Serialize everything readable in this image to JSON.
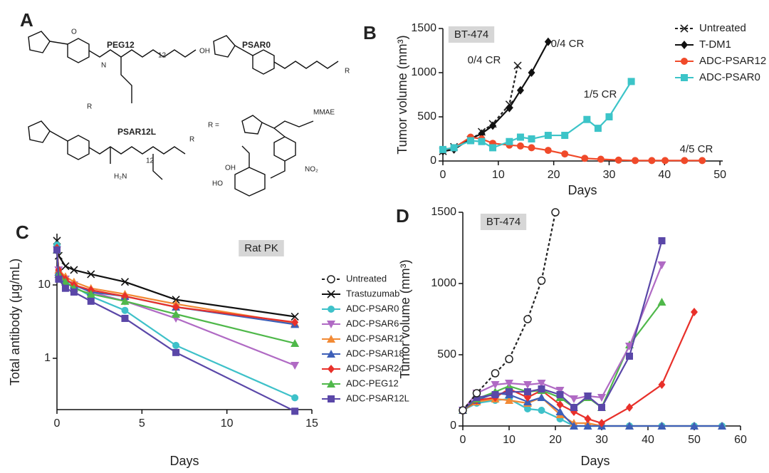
{
  "panel_labels": [
    "A",
    "B",
    "C",
    "D"
  ],
  "structures": {
    "names": [
      "PEG12",
      "PSAR0",
      "PSAR12L"
    ],
    "r_label": "R =",
    "atoms": [
      "O",
      "N",
      "OH",
      "R",
      "MMAE",
      "NO₂",
      "OH",
      "HO",
      "H₂N",
      "12",
      "12",
      "R",
      "R"
    ]
  },
  "chart_data": [
    {
      "type": "line",
      "xlabel": "Days",
      "ylabel": "Tumor volume (mm³)",
      "xlim": [
        0,
        50.5
      ],
      "ylim": [
        0,
        1500
      ],
      "xticks": [
        0,
        10,
        20,
        30,
        40,
        50
      ],
      "yticks": [
        0,
        500,
        1000,
        1500
      ],
      "legend": "upper right",
      "annotations": [
        {
          "text": "BT-474",
          "boxed": true
        },
        {
          "text": "0/4 CR",
          "color": "#222222"
        },
        {
          "text": "0/4 CR",
          "color": "#222222"
        },
        {
          "text": "1/5 CR",
          "color": "#3cc4c8"
        },
        {
          "text": "4/5 CR",
          "color": "#f04a2a"
        }
      ],
      "series": [
        {
          "name": "Untreated",
          "color": "#222222",
          "marker": "x",
          "dash": true,
          "x": [
            0,
            2,
            5,
            7,
            9,
            12,
            13.5
          ],
          "values": [
            110,
            160,
            240,
            330,
            420,
            640,
            1080
          ]
        },
        {
          "name": "T-DM1",
          "color": "#111111",
          "marker": "diamond",
          "dash": false,
          "x": [
            0,
            2,
            5,
            7,
            9,
            12,
            14,
            16,
            19
          ],
          "values": [
            110,
            130,
            250,
            310,
            400,
            600,
            800,
            1000,
            1350
          ]
        },
        {
          "name": "ADC-PSAR12",
          "color": "#f04a2a",
          "marker": "circle",
          "dash": false,
          "x": [
            0,
            2,
            5,
            7,
            9,
            12,
            14,
            16,
            19,
            22,
            25.6,
            28.5,
            31.7,
            34.7,
            37.7,
            40.1,
            43.6,
            46.8
          ],
          "values": [
            130,
            150,
            270,
            250,
            200,
            180,
            170,
            150,
            120,
            80,
            30,
            20,
            10,
            5,
            5,
            5,
            5,
            5
          ]
        },
        {
          "name": "ADC-PSAR0",
          "color": "#3cc4c8",
          "marker": "square",
          "dash": false,
          "x": [
            0,
            2,
            5,
            7,
            9,
            12,
            14,
            16,
            19,
            22,
            26,
            28,
            30,
            34
          ],
          "values": [
            130,
            150,
            230,
            220,
            150,
            220,
            270,
            250,
            290,
            290,
            470,
            370,
            500,
            900
          ]
        }
      ]
    },
    {
      "type": "line",
      "xlabel": "Days",
      "ylabel": "Total antibody (μg/mL)",
      "xlim": [
        0,
        15
      ],
      "ylim": [
        0.2,
        50
      ],
      "log_y": true,
      "xticks": [
        0,
        5,
        10,
        15
      ],
      "yticks": [
        1,
        10
      ],
      "legend": "right",
      "annotations": [
        {
          "text": "Rat PK",
          "boxed": true
        }
      ],
      "x": [
        0,
        0.1,
        0.5,
        1,
        2,
        4,
        7,
        14
      ],
      "series": [
        {
          "name": "Untreated",
          "color": "#222222",
          "marker": "open-circle",
          "dash": true,
          "values": [
            null,
            null,
            null,
            null,
            null,
            null,
            null,
            null
          ]
        },
        {
          "name": "Trastuzumab",
          "color": "#111111",
          "marker": "x",
          "dash": false,
          "values": [
            40,
            25,
            18,
            16,
            14,
            11,
            6.3,
            3.7
          ]
        },
        {
          "name": "ADC-PSAR0",
          "color": "#3ec1c9",
          "marker": "circle",
          "dash": false,
          "values": [
            35,
            15,
            11,
            9.5,
            7,
            4.5,
            1.5,
            0.29
          ]
        },
        {
          "name": "ADC-PSAR6",
          "color": "#b06ac4",
          "marker": "triangle-down",
          "dash": false,
          "values": [
            30,
            16,
            12,
            10,
            8,
            6,
            3.5,
            0.8
          ]
        },
        {
          "name": "ADC-PSAR12",
          "color": "#f28a35",
          "marker": "triangle",
          "dash": false,
          "values": [
            30,
            16,
            13,
            11,
            9,
            7.5,
            5.5,
            3.0
          ]
        },
        {
          "name": "ADC-PSAR18",
          "color": "#3d5fb8",
          "marker": "triangle",
          "dash": false,
          "values": [
            30,
            15,
            12,
            10,
            8,
            7,
            5.0,
            2.9
          ]
        },
        {
          "name": "ADC-PSAR24",
          "color": "#e8302a",
          "marker": "diamond",
          "dash": false,
          "values": [
            32,
            16,
            12,
            10,
            8.5,
            7,
            5,
            3.1
          ]
        },
        {
          "name": "ADC-PEG12",
          "color": "#4fb84a",
          "marker": "triangle",
          "dash": false,
          "values": [
            30,
            14,
            11,
            9,
            7.5,
            6,
            4,
            1.6
          ]
        },
        {
          "name": "ADC-PSAR12L",
          "color": "#5a47a8",
          "marker": "square",
          "dash": false,
          "values": [
            30,
            12,
            9,
            8,
            6,
            3.5,
            1.2,
            0.19
          ]
        }
      ]
    },
    {
      "type": "line",
      "xlabel": "Days",
      "ylabel": "Tumor volume (mm³)",
      "xlim": [
        0,
        60
      ],
      "ylim": [
        0,
        1500
      ],
      "xticks": [
        0,
        10,
        20,
        30,
        40,
        50,
        60
      ],
      "yticks": [
        0,
        500,
        1000,
        1500
      ],
      "annotations": [
        {
          "text": "BT-474",
          "boxed": true
        }
      ],
      "x": [
        0,
        3,
        7,
        10,
        14,
        17,
        21,
        24,
        27,
        30,
        36,
        43,
        50,
        56
      ],
      "series": [
        {
          "color": "#3ec1c9",
          "marker": "circle",
          "dash": false,
          "values": [
            110,
            160,
            180,
            190,
            120,
            110,
            50,
            0,
            0,
            0,
            0,
            0,
            0,
            0
          ]
        },
        {
          "color": "#f28a35",
          "marker": "triangle",
          "dash": false,
          "values": [
            110,
            170,
            190,
            180,
            160,
            200,
            80,
            20,
            20,
            0,
            0,
            0,
            0,
            0
          ]
        },
        {
          "color": "#3d5fb8",
          "marker": "triangle",
          "dash": false,
          "values": [
            110,
            180,
            230,
            220,
            170,
            200,
            100,
            0,
            0,
            0,
            0,
            0,
            0,
            0
          ]
        },
        {
          "color": "#e8302a",
          "marker": "diamond",
          "dash": false,
          "values": [
            110,
            180,
            200,
            260,
            200,
            250,
            150,
            100,
            50,
            20,
            130,
            290,
            800,
            null
          ]
        },
        {
          "color": "#4fb84a",
          "marker": "triangle",
          "dash": false,
          "values": [
            110,
            190,
            240,
            280,
            240,
            250,
            200,
            130,
            200,
            130,
            570,
            870,
            null,
            null
          ]
        },
        {
          "color": "#b06ac4",
          "marker": "triangle-down",
          "dash": false,
          "values": [
            110,
            230,
            290,
            300,
            290,
            300,
            250,
            190,
            210,
            200,
            560,
            1130,
            null,
            null
          ]
        },
        {
          "color": "#5a47a8",
          "marker": "square",
          "dash": false,
          "values": [
            110,
            200,
            220,
            240,
            240,
            260,
            220,
            130,
            210,
            130,
            490,
            1300,
            null,
            null
          ]
        },
        {
          "color": "#222222",
          "marker": "open-circle",
          "dash": true,
          "x": [
            0,
            3,
            7,
            10,
            14,
            17,
            20
          ],
          "values": [
            110,
            230,
            370,
            470,
            750,
            1020,
            1500
          ]
        }
      ]
    }
  ]
}
